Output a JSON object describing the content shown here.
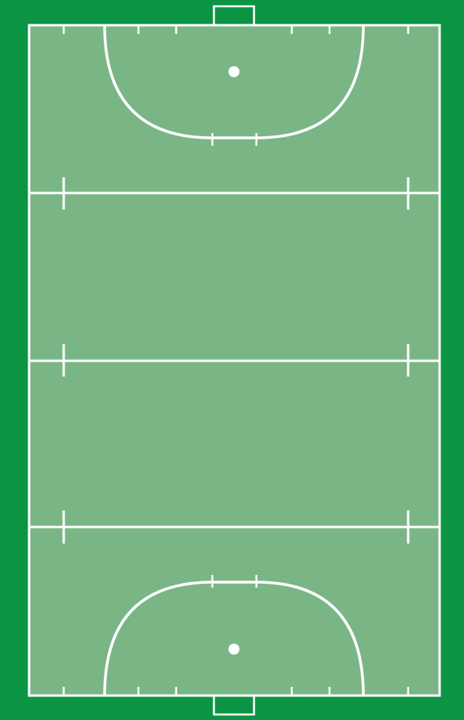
{
  "pitch": {
    "sport": "field-hockey",
    "view": "top-down",
    "orientation": "vertical",
    "colors": {
      "surround": "#0b9444",
      "field": "#7ab685",
      "lines": "#ffffff"
    },
    "markings": {
      "goals": 2,
      "shooting_circles": 2,
      "penalty_spots": 2,
      "transverse_lines": 3
    }
  }
}
